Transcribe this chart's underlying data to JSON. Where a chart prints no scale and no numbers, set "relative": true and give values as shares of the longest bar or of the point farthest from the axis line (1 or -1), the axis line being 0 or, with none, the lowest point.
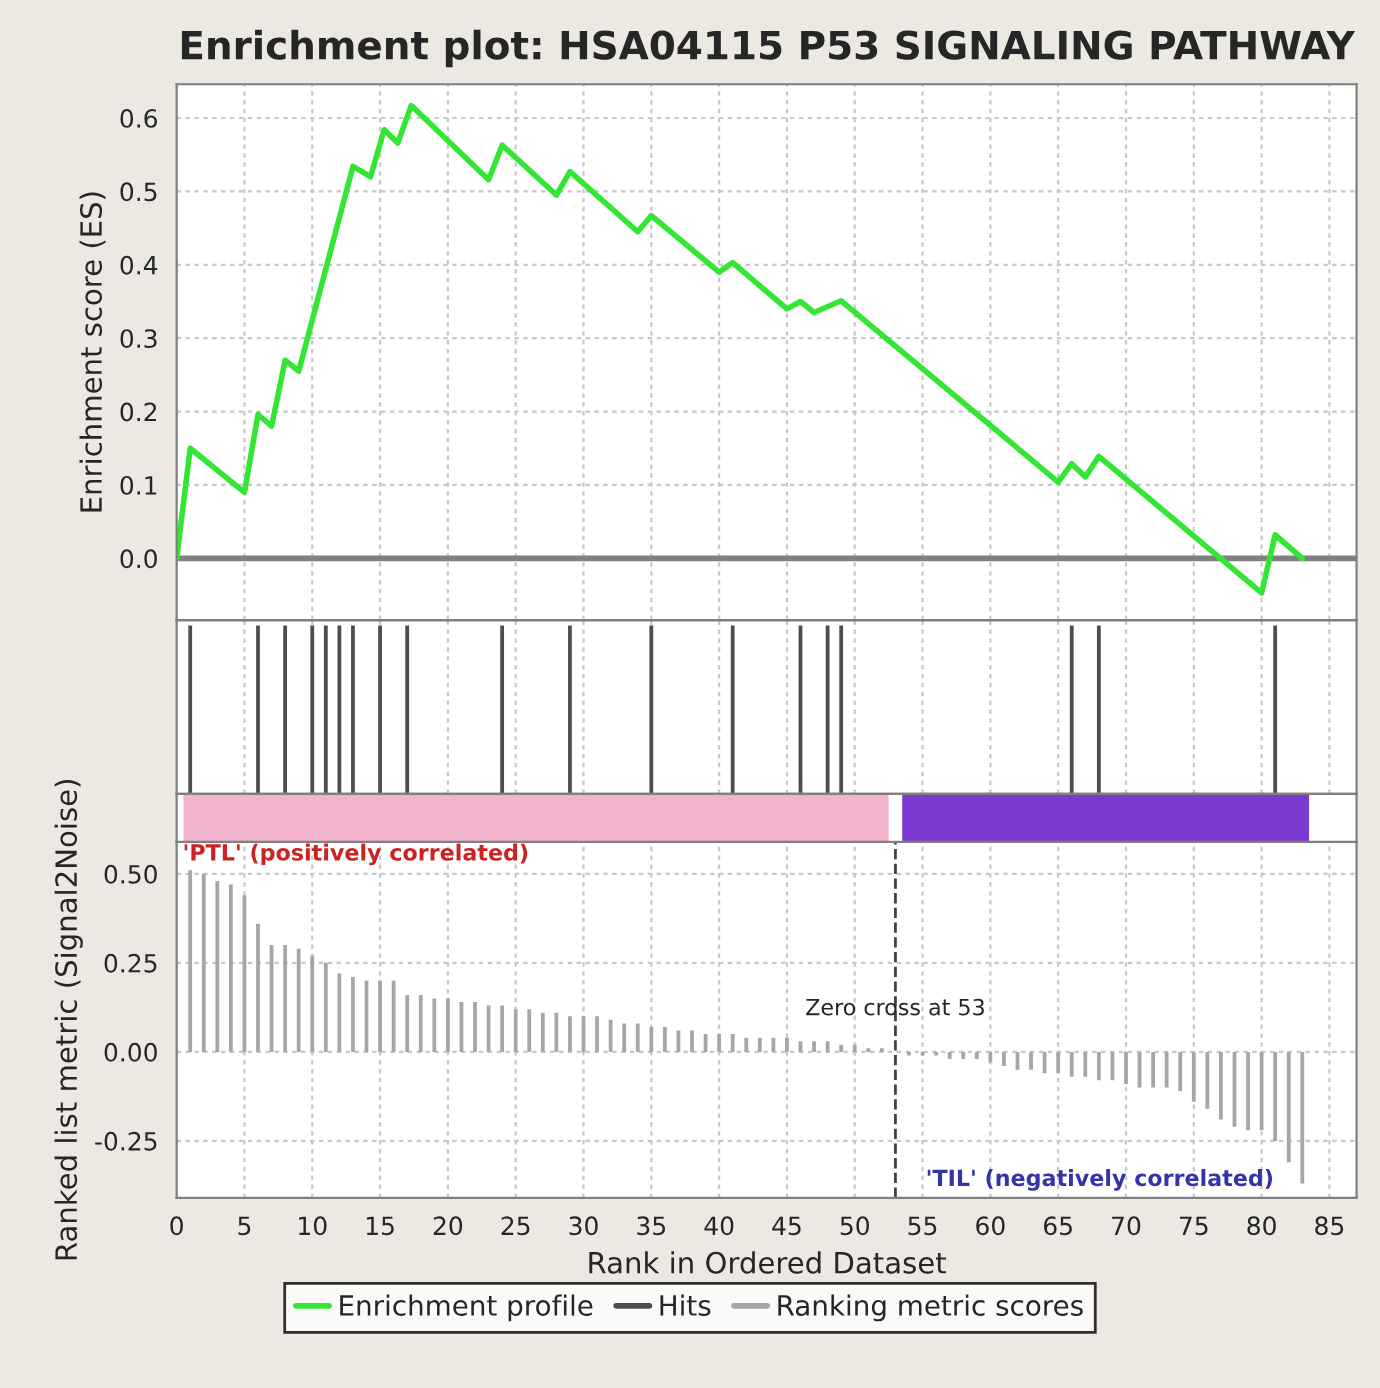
{
  "chart_data": [
    {
      "type": "line",
      "title": "Enrichment plot: HSA04115 P53 SIGNALING PATHWAY",
      "ylabel": "Enrichment score (ES)",
      "series": [
        {
          "name": "Enrichment profile",
          "color": "#33e633",
          "x": [
            0,
            1,
            5,
            6,
            7,
            8,
            9,
            13,
            14.3,
            15.3,
            16.3,
            17.3,
            23,
            24,
            28,
            29,
            34,
            35,
            40,
            41,
            45,
            46,
            47,
            49,
            65,
            66,
            67,
            68,
            80,
            81,
            83
          ],
          "values": [
            0.0,
            0.15,
            0.09,
            0.196,
            0.18,
            0.27,
            0.255,
            0.534,
            0.52,
            0.584,
            0.566,
            0.617,
            0.516,
            0.563,
            0.495,
            0.527,
            0.445,
            0.467,
            0.39,
            0.403,
            0.34,
            0.35,
            0.335,
            0.351,
            0.104,
            0.129,
            0.111,
            0.139,
            -0.047,
            0.032,
            0.0
          ]
        }
      ],
      "xlim": [
        0,
        87
      ],
      "xticks": [
        0,
        5,
        10,
        15,
        20,
        25,
        30,
        35,
        40,
        45,
        50,
        55,
        60,
        65,
        70,
        75,
        80,
        85
      ],
      "ylim": [
        -0.084,
        0.646
      ],
      "yticks": [
        {
          "value": 0,
          "label": "0.0"
        },
        0.1,
        0.2,
        0.3,
        0.4,
        0.5,
        0.6
      ],
      "ref_lines": [
        {
          "axis": "y",
          "value": 0,
          "color": "#808080",
          "line_style": "solid"
        }
      ],
      "grid": true,
      "tick_labels": "y"
    },
    {
      "type": "bar",
      "relative": true,
      "series": [
        {
          "name": "Hits",
          "color": "#4d4d4d",
          "x": [
            1,
            6,
            8,
            10,
            11,
            12,
            13,
            15,
            17,
            24,
            29,
            35,
            41,
            46,
            48,
            49,
            66,
            68,
            81
          ],
          "values": [
            1,
            1,
            1,
            1,
            1,
            1,
            1,
            1,
            1,
            1,
            1,
            1,
            1,
            1,
            1,
            1,
            1,
            1,
            1
          ]
        }
      ],
      "xlim": [
        0,
        87
      ],
      "xticks": [
        0,
        5,
        10,
        15,
        20,
        25,
        30,
        35,
        40,
        45,
        50,
        55,
        60,
        65,
        70,
        75,
        80,
        85
      ],
      "grid": "x",
      "tick_labels": false
    },
    {
      "type": "bar",
      "xlabel": "Rank in Ordered Dataset",
      "ylabel": "Ranked list metric (Signal2Noise)",
      "series": [
        {
          "name": "Ranking metric scores",
          "color": "#a6a6a6",
          "x": [
            1,
            2,
            3,
            4,
            5,
            6,
            7,
            8,
            9,
            10,
            11,
            12,
            13,
            14,
            15,
            16,
            17,
            18,
            19,
            20,
            21,
            22,
            23,
            24,
            25,
            26,
            27,
            28,
            29,
            30,
            31,
            32,
            33,
            34,
            35,
            36,
            37,
            38,
            39,
            40,
            41,
            42,
            43,
            44,
            45,
            46,
            47,
            48,
            49,
            50,
            51,
            52,
            53,
            54,
            55,
            56,
            57,
            58,
            59,
            60,
            61,
            62,
            63,
            64,
            65,
            66,
            67,
            68,
            69,
            70,
            71,
            72,
            73,
            74,
            75,
            76,
            77,
            78,
            79,
            80,
            81,
            82,
            83
          ],
          "values": [
            0.51,
            0.5,
            0.48,
            0.47,
            0.44,
            0.36,
            0.3,
            0.3,
            0.29,
            0.27,
            0.25,
            0.22,
            0.21,
            0.2,
            0.2,
            0.2,
            0.16,
            0.16,
            0.15,
            0.15,
            0.14,
            0.14,
            0.13,
            0.13,
            0.12,
            0.12,
            0.11,
            0.11,
            0.1,
            0.1,
            0.1,
            0.09,
            0.08,
            0.08,
            0.07,
            0.07,
            0.06,
            0.06,
            0.05,
            0.05,
            0.05,
            0.04,
            0.04,
            0.04,
            0.04,
            0.03,
            0.03,
            0.03,
            0.02,
            0.02,
            0.01,
            0.01,
            null,
            -0.01,
            -0.01,
            -0.01,
            -0.02,
            -0.02,
            -0.02,
            -0.03,
            -0.04,
            -0.05,
            -0.05,
            -0.06,
            -0.06,
            -0.07,
            -0.07,
            -0.08,
            -0.08,
            -0.09,
            -0.1,
            -0.1,
            -0.1,
            -0.11,
            -0.14,
            -0.16,
            -0.19,
            -0.21,
            -0.22,
            -0.22,
            -0.25,
            -0.31,
            -0.37
          ]
        }
      ],
      "xlim": [
        0,
        87
      ],
      "xticks": [
        0,
        5,
        10,
        15,
        20,
        25,
        30,
        35,
        40,
        45,
        50,
        55,
        60,
        65,
        70,
        75,
        80,
        85
      ],
      "ylim": [
        -0.41,
        0.59
      ],
      "yticks": [
        {
          "value": -0.25,
          "label": "-0.25"
        },
        {
          "value": 0,
          "label": "0.00"
        },
        {
          "value": 0.25,
          "label": "0.25"
        },
        {
          "value": 0.5,
          "label": "0.50"
        }
      ],
      "ref_lines": [
        {
          "axis": "x",
          "value": 53,
          "label": "Zero cross at 53",
          "color": "#404040",
          "line_style": "dashed"
        }
      ],
      "annotations": [
        "'PTL' (positively correlated)",
        "'TIL' (negatively correlated)"
      ],
      "grid": true,
      "legend": "bottom"
    }
  ]
}
